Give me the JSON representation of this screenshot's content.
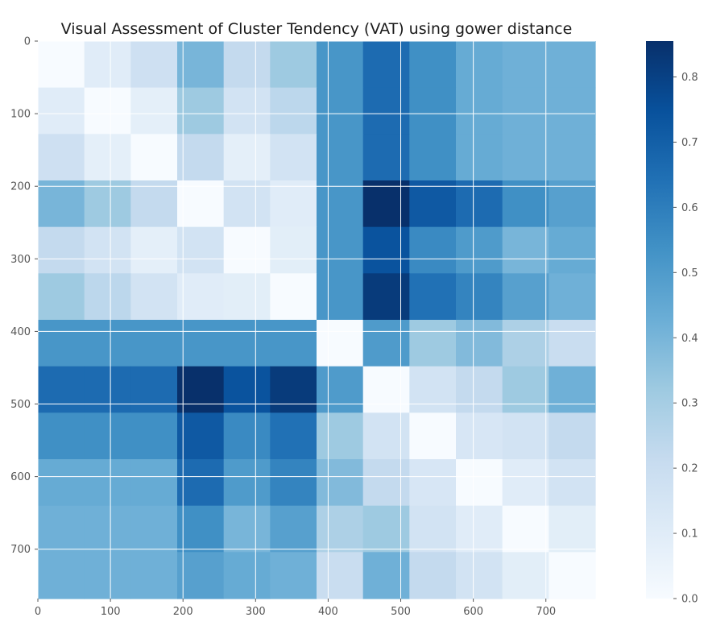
{
  "chart_data": {
    "type": "heatmap",
    "title": "Visual Assessment of Cluster Tendency (VAT) using gower distance",
    "xlabel": "",
    "ylabel": "",
    "n": 12,
    "extent": [
      0,
      768
    ],
    "x_ticks": [
      0,
      100,
      200,
      300,
      400,
      500,
      600,
      700
    ],
    "y_ticks": [
      0,
      100,
      200,
      300,
      400,
      500,
      600,
      700
    ],
    "colormap": "Blues",
    "colorbar": {
      "min": 0.0,
      "max": 0.855,
      "ticks": [
        "0.0",
        "0.1",
        "0.2",
        "0.3",
        "0.4",
        "0.5",
        "0.6",
        "0.7",
        "0.8"
      ]
    },
    "grid": true,
    "matrix": [
      [
        0.0,
        0.1,
        0.18,
        0.4,
        0.22,
        0.32,
        0.52,
        0.66,
        0.54,
        0.44,
        0.42,
        0.42
      ],
      [
        0.1,
        0.0,
        0.08,
        0.32,
        0.16,
        0.24,
        0.52,
        0.66,
        0.54,
        0.44,
        0.42,
        0.42
      ],
      [
        0.18,
        0.08,
        0.0,
        0.22,
        0.08,
        0.16,
        0.52,
        0.66,
        0.54,
        0.44,
        0.42,
        0.42
      ],
      [
        0.4,
        0.32,
        0.22,
        0.0,
        0.16,
        0.1,
        0.52,
        0.855,
        0.72,
        0.66,
        0.54,
        0.48
      ],
      [
        0.22,
        0.16,
        0.08,
        0.16,
        0.0,
        0.09,
        0.52,
        0.74,
        0.56,
        0.5,
        0.4,
        0.44
      ],
      [
        0.32,
        0.24,
        0.16,
        0.1,
        0.09,
        0.0,
        0.52,
        0.82,
        0.64,
        0.58,
        0.48,
        0.42
      ],
      [
        0.52,
        0.52,
        0.52,
        0.52,
        0.52,
        0.52,
        0.0,
        0.5,
        0.32,
        0.38,
        0.28,
        0.2
      ],
      [
        0.66,
        0.66,
        0.66,
        0.855,
        0.74,
        0.82,
        0.5,
        0.0,
        0.16,
        0.22,
        0.32,
        0.42
      ],
      [
        0.54,
        0.54,
        0.54,
        0.72,
        0.56,
        0.64,
        0.32,
        0.16,
        0.0,
        0.14,
        0.16,
        0.22
      ],
      [
        0.44,
        0.44,
        0.44,
        0.66,
        0.5,
        0.58,
        0.38,
        0.22,
        0.14,
        0.0,
        0.1,
        0.16
      ],
      [
        0.42,
        0.42,
        0.42,
        0.54,
        0.4,
        0.48,
        0.28,
        0.32,
        0.16,
        0.1,
        0.0,
        0.09
      ],
      [
        0.42,
        0.42,
        0.42,
        0.48,
        0.44,
        0.42,
        0.2,
        0.42,
        0.22,
        0.16,
        0.09,
        0.0
      ]
    ]
  }
}
